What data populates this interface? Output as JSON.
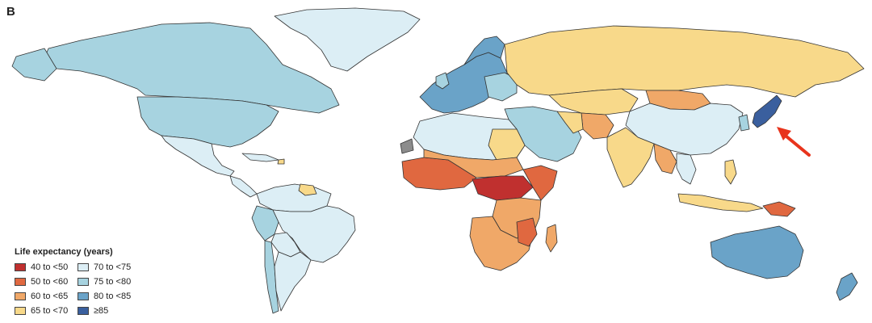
{
  "panel_label": "B",
  "legend": {
    "title": "Life expectancy (years)",
    "items": [
      {
        "label": "40 to <50",
        "color": "#c0302f"
      },
      {
        "label": "70 to <75",
        "color": "#dceef5"
      },
      {
        "label": "50 to <60",
        "color": "#e06840"
      },
      {
        "label": "75 to <80",
        "color": "#a7d3e0"
      },
      {
        "label": "60 to <65",
        "color": "#f0a868"
      },
      {
        "label": "80 to <85",
        "color": "#6aa3c8"
      },
      {
        "label": "65 to <70",
        "color": "#f8d98a"
      },
      {
        "label": "≥85",
        "color": "#3a5f9e"
      }
    ]
  },
  "map": {
    "ocean_color": "#ffffff",
    "border_color": "#333333",
    "no_data_color": "#8c8c8c",
    "annotation": {
      "type": "arrow",
      "color": "#e8341c",
      "points_to": "Japan"
    }
  }
}
